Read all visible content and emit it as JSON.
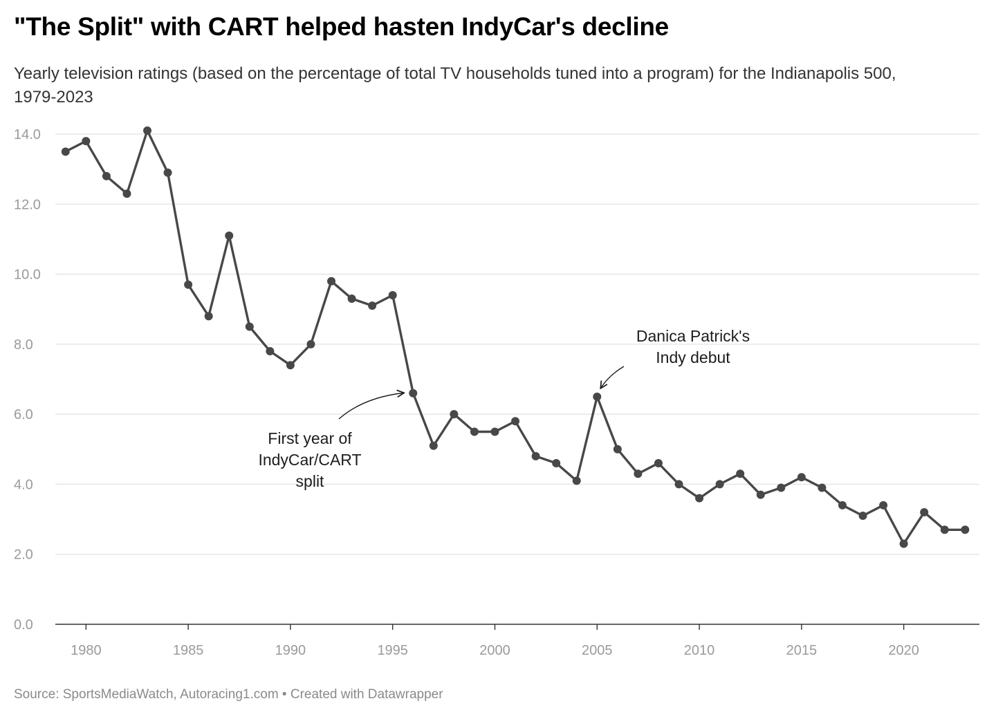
{
  "header": {
    "title": "\"The Split\" with CART helped hasten IndyCar's decline",
    "subtitle": "Yearly television ratings (based on the percentage of total TV households tuned into a program) for the Indianapolis 500, 1979-2023"
  },
  "footer": {
    "source": "Source: SportsMediaWatch, Autoracing1.com • Created with Datawrapper"
  },
  "colors": {
    "line": "#484848",
    "grid": "#e2e2e2",
    "axis": "#333333",
    "tick_text": "#9a9a9a"
  },
  "chart_data": {
    "type": "line",
    "title": "\"The Split\" with CART helped hasten IndyCar's decline",
    "xlabel": "",
    "ylabel": "",
    "xlim": [
      1978.5,
      2023.7
    ],
    "ylim": [
      0,
      14
    ],
    "grid": true,
    "x_ticks": [
      1980,
      1985,
      1990,
      1995,
      2000,
      2005,
      2010,
      2015,
      2020
    ],
    "y_ticks": [
      0,
      2,
      4,
      6,
      8,
      10,
      12,
      14
    ],
    "y_tick_labels": [
      "0.0",
      "2.0",
      "4.0",
      "6.0",
      "8.0",
      "10.0",
      "12.0",
      "14.0"
    ],
    "series": [
      {
        "x": [
          1979,
          1980,
          1981,
          1982,
          1983,
          1984,
          1985,
          1986,
          1987,
          1988,
          1989,
          1990,
          1991,
          1992,
          1993,
          1994,
          1995,
          1996,
          1997,
          1998,
          1999,
          2000,
          2001,
          2002,
          2003,
          2004,
          2005,
          2006,
          2007,
          2008,
          2009,
          2010,
          2011,
          2012,
          2013,
          2014,
          2015,
          2016,
          2017,
          2018,
          2019,
          2020,
          2021,
          2022,
          2023
        ],
        "values": [
          13.5,
          13.8,
          12.8,
          12.3,
          14.1,
          12.9,
          9.7,
          8.8,
          11.1,
          8.5,
          7.8,
          7.4,
          8.0,
          9.8,
          9.3,
          9.1,
          9.4,
          6.6,
          5.1,
          6.0,
          5.5,
          5.5,
          5.8,
          4.8,
          4.6,
          4.1,
          6.5,
          5.0,
          4.3,
          4.6,
          4.0,
          3.6,
          4.0,
          4.3,
          3.7,
          3.9,
          4.2,
          3.9,
          3.4,
          3.1,
          3.4,
          2.3,
          3.2,
          2.7,
          2.7
        ]
      }
    ],
    "annotations": [
      {
        "lines": [
          "First year of",
          "IndyCar/CART",
          "split"
        ],
        "x": 1996,
        "y": 6.6
      },
      {
        "lines": [
          "Danica Patrick's",
          "Indy debut"
        ],
        "x": 2005,
        "y": 6.5
      }
    ]
  }
}
